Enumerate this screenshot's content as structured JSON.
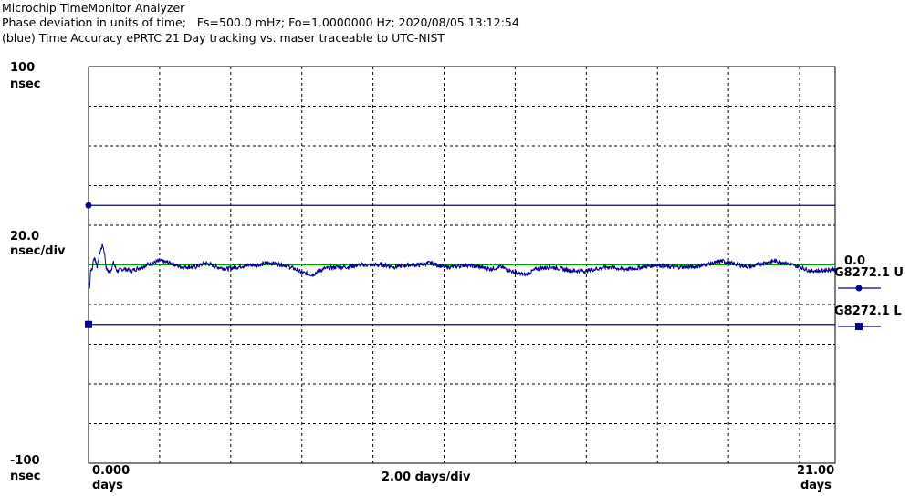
{
  "header": {
    "line1": "Microchip TimeMonitor Analyzer",
    "line2": "Phase deviation in units of time;   Fs=500.0 mHz; Fo=1.0000000 Hz; 2020/08/05 13:12:54",
    "line3": "(blue) Time Accuracy ePRTC 21 Day tracking vs. maser traceable to UTC-NIST"
  },
  "colors": {
    "trace": "#00008b",
    "limit": "#00008b",
    "reference": "#00a000",
    "grid": "#000000"
  },
  "chart_data": {
    "type": "line",
    "title": "(blue) Time Accuracy ePRTC 21 Day tracking vs. maser traceable to UTC-NIST",
    "ylim": [
      -100,
      100
    ],
    "xlim": [
      0,
      21
    ],
    "y_top_label": "100",
    "y_top_unit": "nsec",
    "y_scale_label": "20.0",
    "y_scale_unit": "nsec/div",
    "y_bottom_label": "-100",
    "y_bottom_unit": "nsec",
    "x_left_label": "0.000",
    "x_left_unit": "days",
    "x_scale_label": "2.00 days/div",
    "x_right_label": "21.00",
    "x_right_unit": "days",
    "grid": true,
    "reference_line": {
      "value": 0.0,
      "label": "0.0"
    },
    "limits": [
      {
        "name": "G8272.1 U",
        "value": 30,
        "marker": "circle"
      },
      {
        "name": "G8272.1 L",
        "value": -30,
        "marker": "square"
      }
    ],
    "series": [
      {
        "x": [
          0,
          0.03,
          0.06,
          0.1,
          0.15,
          0.2,
          0.25,
          0.3,
          0.35,
          0.4,
          0.45,
          0.5,
          0.6,
          0.7,
          0.8,
          1.0,
          1.2,
          1.5,
          1.8,
          2.0,
          2.3,
          2.6,
          3.0,
          3.3,
          3.6,
          3.9,
          4.2,
          4.5,
          4.8,
          5.1,
          5.5,
          5.8,
          6.0,
          6.3,
          6.6,
          7.0,
          7.3,
          7.6,
          8.0,
          8.3,
          8.6,
          9.0,
          9.3,
          9.6,
          10.0,
          10.3,
          10.6,
          11.0,
          11.3,
          11.6,
          12.0,
          12.3,
          12.6,
          13.0,
          13.3,
          13.6,
          14.0,
          14.3,
          14.6,
          15.0,
          15.3,
          15.6,
          16.0,
          16.3,
          16.6,
          17.0,
          17.3,
          17.6,
          17.8,
          18.0,
          18.3,
          18.6,
          19.0,
          19.3,
          19.6,
          20.0,
          20.3,
          20.6,
          21.0
        ],
        "y": [
          -8,
          -12,
          -2,
          -3,
          4,
          2,
          -1,
          5,
          8,
          10,
          6,
          -2,
          -4,
          1,
          -3,
          -2,
          -3,
          -1,
          1,
          2,
          1,
          -1,
          -1,
          1,
          -1,
          -2,
          -1,
          0,
          0,
          1,
          0,
          -2,
          -4,
          -5,
          -2,
          -1,
          -1,
          0,
          0,
          0,
          -1,
          0,
          0,
          1,
          -1,
          -1,
          0,
          -1,
          -2,
          -1,
          -4,
          -5,
          -2,
          -1,
          -2,
          -3,
          -3,
          -2,
          -1,
          -2,
          -2,
          -1,
          0,
          -1,
          -1,
          -1,
          0,
          1,
          2,
          1,
          0,
          -1,
          1,
          2,
          1,
          -1,
          -3,
          -3,
          -2
        ]
      }
    ]
  }
}
